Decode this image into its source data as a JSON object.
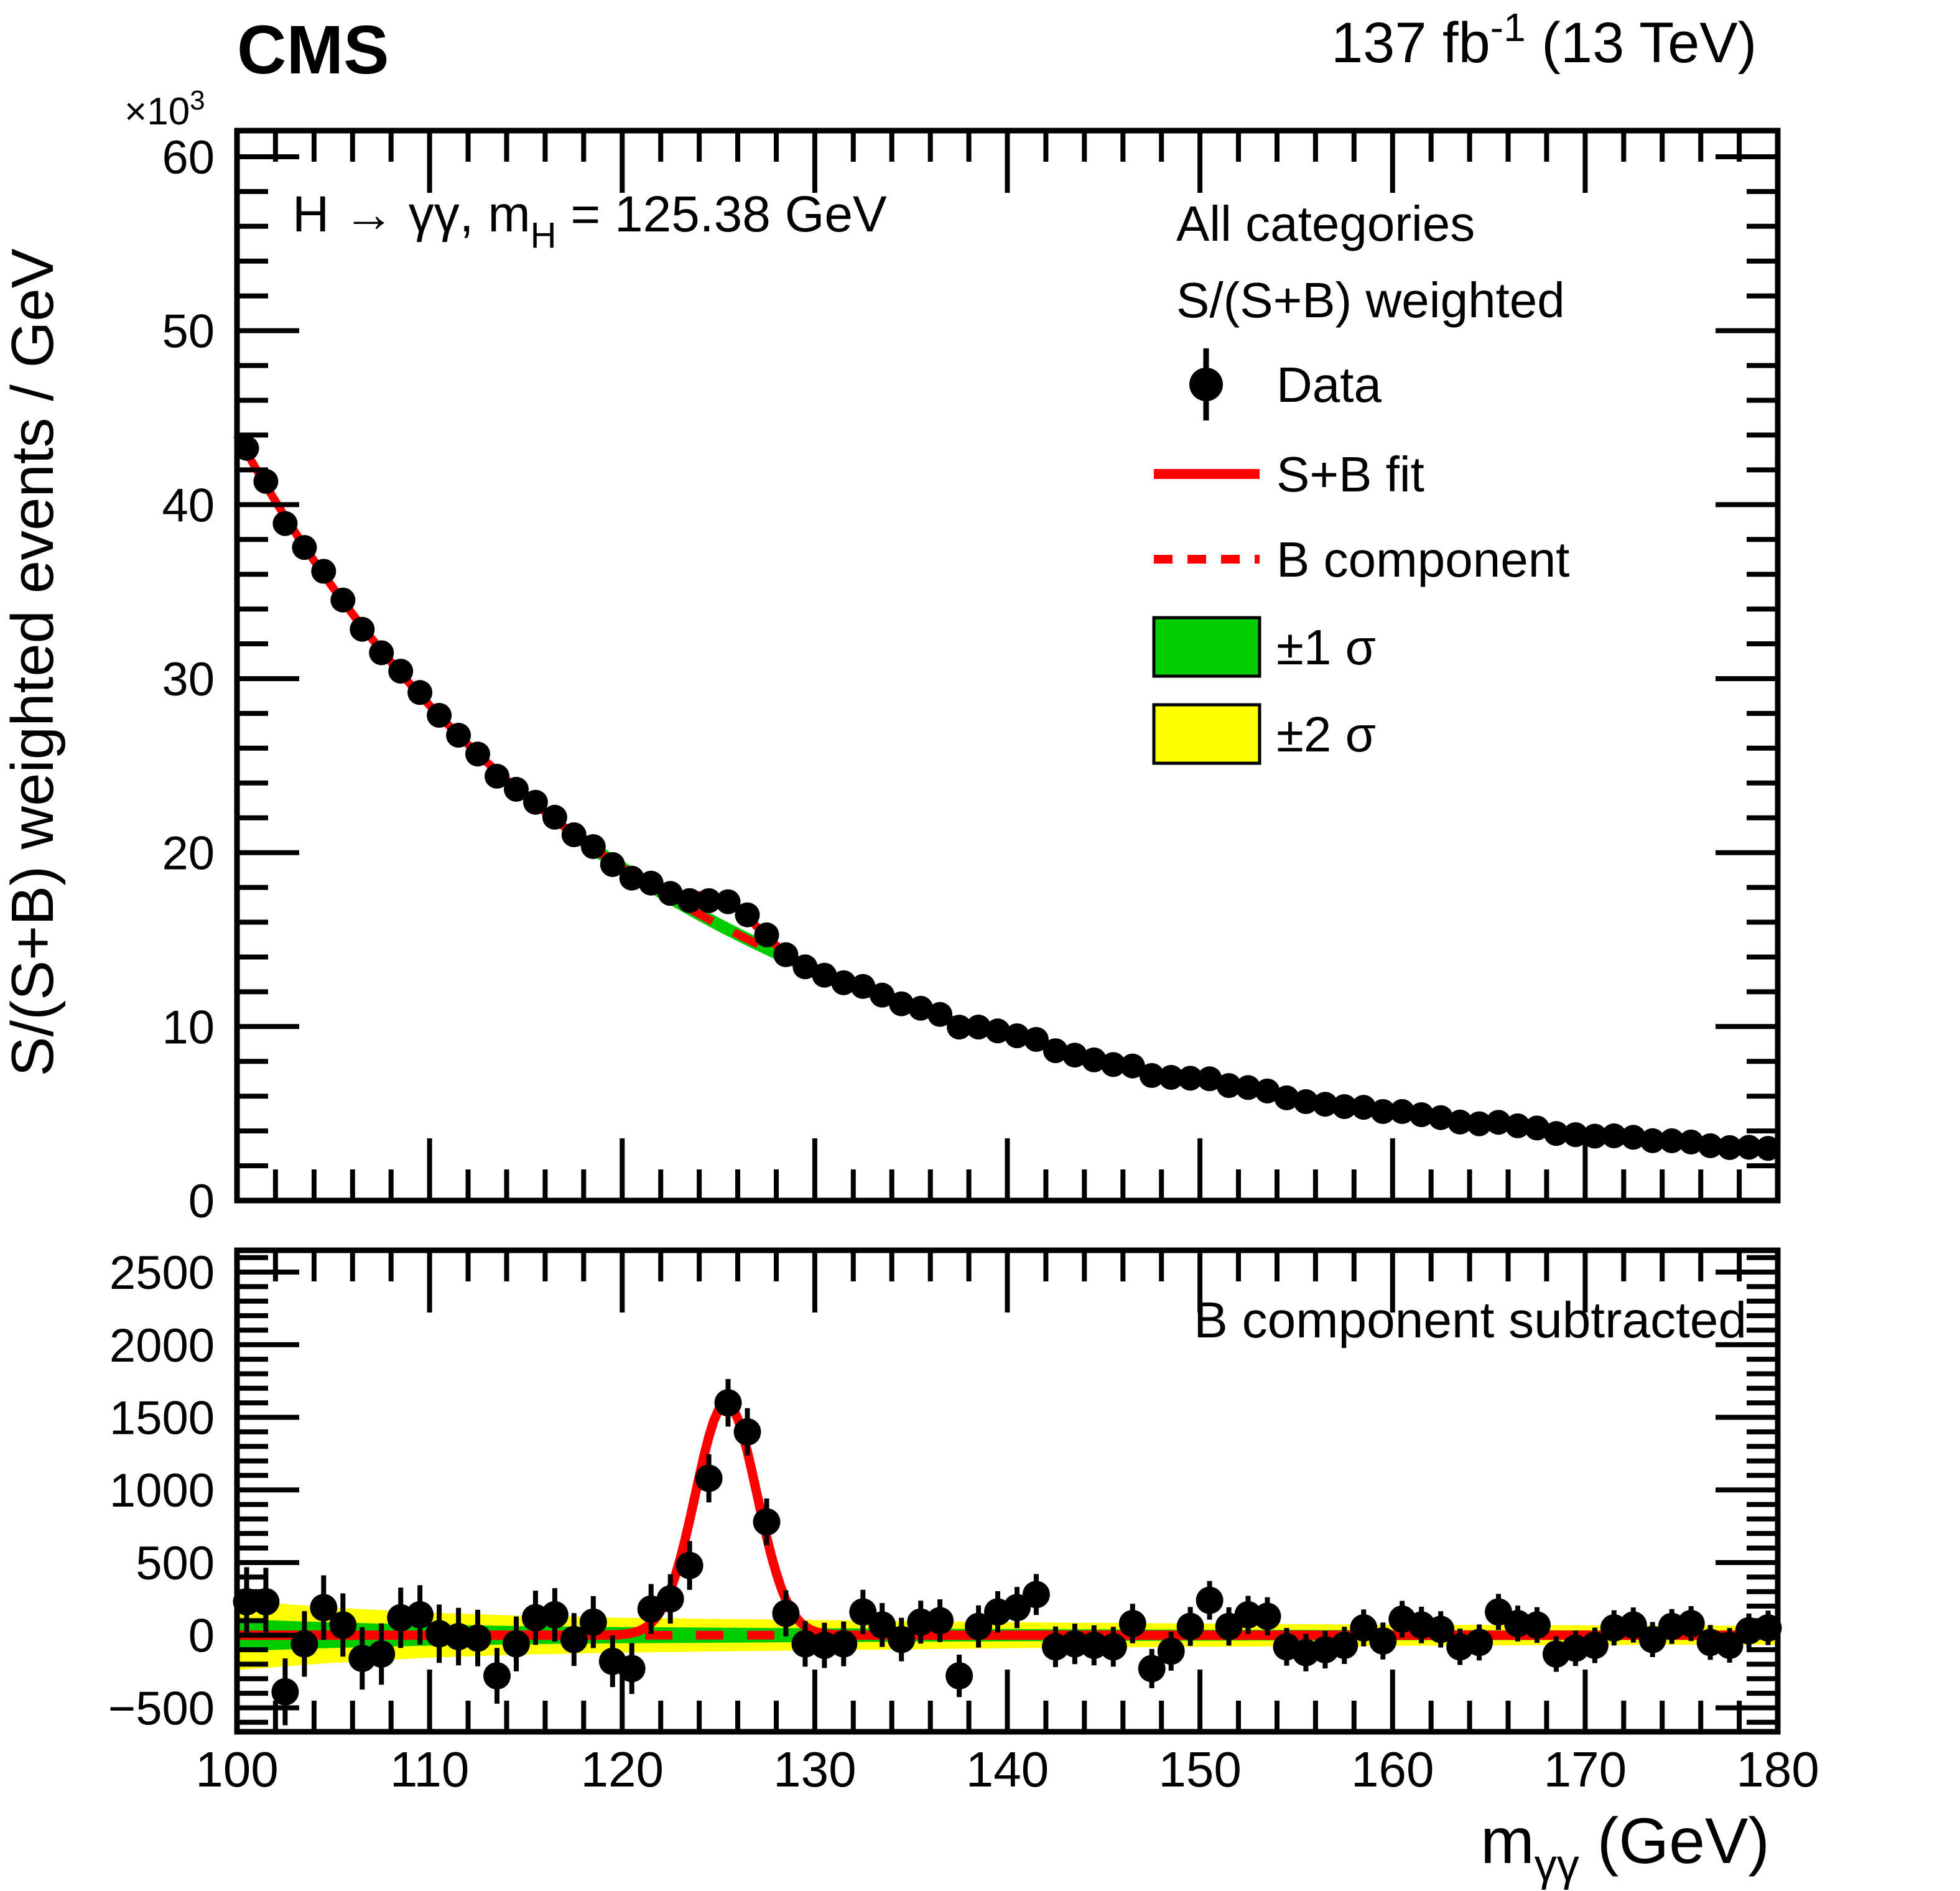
{
  "figure": {
    "header": {
      "experiment": "CMS",
      "lumi_main": "137 fb",
      "lumi_sup": "-1",
      "lumi_rest": " (13 TeV)"
    },
    "scale_label": {
      "main": "×10",
      "sup": "3"
    },
    "process_annotation": {
      "pre": "H → γγ, m",
      "sub": "H",
      "post": " = 125.38 GeV"
    },
    "y_axis_title": "S/(S+B) weighted events / GeV",
    "x_axis_title": {
      "pre": "m",
      "sub": "γγ",
      "post": " (GeV)"
    },
    "bottom_annotation": "B component subtracted",
    "legend": {
      "position": "top-right-inside",
      "items": [
        {
          "label": "All categories",
          "marker": "none"
        },
        {
          "label": "S/(S+B) weighted",
          "marker": "none"
        },
        {
          "label": "Data",
          "marker": "data-point",
          "color": "#000000"
        },
        {
          "label": "S+B fit",
          "marker": "solid-line",
          "color": "#ff0000"
        },
        {
          "label": "B component",
          "marker": "dashed-line",
          "color": "#ff0000"
        },
        {
          "label": "±1 σ",
          "marker": "box",
          "color": "#00cc00"
        },
        {
          "label": "±2 σ",
          "marker": "box",
          "color": "#ffff00"
        }
      ]
    },
    "colors": {
      "fit_line": "#ff0000",
      "band_1sigma": "#00cc00",
      "band_2sigma": "#ffff00",
      "data_marker": "#000000"
    }
  },
  "chart_data": [
    {
      "type": "scatter",
      "name": "weighted-mass-spectrum",
      "title": "S/(S+B) weighted events vs diphoton mass",
      "ylabel": "S/(S+B) weighted events / GeV",
      "grid": false,
      "x_range": [
        100,
        180
      ],
      "y_range": [
        0,
        60000
      ],
      "y_scale_exponent": 3,
      "x_axis": {
        "tick_values": [
          100,
          110,
          120,
          130,
          140,
          150,
          160,
          170,
          180
        ],
        "tick_labels": [
          "100",
          "110",
          "120",
          "130",
          "140",
          "150",
          "160",
          "170",
          "180"
        ],
        "minor_step": 2
      },
      "y_axis": {
        "tick_values": [
          0,
          10000,
          20000,
          30000,
          40000,
          50000,
          60000
        ],
        "tick_labels": [
          "0",
          "10",
          "20",
          "30",
          "40",
          "50",
          "60"
        ],
        "minor_step": 2000
      },
      "x_bins": {
        "start": 100.5,
        "step": 1,
        "count": 80
      },
      "data": {
        "y": [
          43239,
          41336,
          38915,
          37539,
          36172,
          34520,
          32837,
          31487,
          30427,
          29203,
          27890,
          26746,
          25666,
          24388,
          23638,
          22894,
          22034,
          21025,
          20345,
          19311,
          18533,
          18246,
          17652,
          17246,
          17239,
          17178,
          16422,
          15270,
          14131,
          13433,
          12955,
          12517,
          12308,
          11806,
          11311,
          11052,
          10698,
          9968,
          9973,
          9750,
          9470,
          9262,
          8615,
          8359,
          8084,
          7818,
          7733,
          7186,
          7078,
          7028,
          6996,
          6612,
          6495,
          6295,
          5902,
          5685,
          5534,
          5400,
          5360,
          5117,
          5118,
          4935,
          4766,
          4512,
          4413,
          4497,
          4296,
          4169,
          3855,
          3786,
          3699,
          3717,
          3637,
          3440,
          3437,
          3366,
          3149,
          3044,
          3061,
          3001
        ],
        "err": [
          238,
          234,
          230,
          226,
          222,
          218,
          215,
          211,
          208,
          204,
          201,
          198,
          195,
          192,
          189,
          187,
          184,
          182,
          179,
          177,
          175,
          172,
          170,
          168,
          166,
          164,
          163,
          161,
          159,
          157,
          156,
          154,
          153,
          151,
          150,
          148,
          147,
          146,
          145,
          143,
          142,
          141,
          140,
          139,
          138,
          137,
          136,
          135,
          134,
          134,
          133,
          132,
          131,
          131,
          130,
          129,
          129,
          128,
          127,
          127,
          126,
          126,
          125,
          125,
          124,
          124,
          123,
          123,
          122,
          122,
          122,
          121,
          121,
          121,
          120,
          120,
          120,
          119,
          119,
          119
        ]
      },
      "fit": {
        "background": {
          "model": "power-law",
          "norm": 44000,
          "index": 4.57,
          "ref": 100
        },
        "signal": {
          "model": "gaussian",
          "amplitude": 1600,
          "mean": 125.4,
          "sigma": 1.6
        }
      }
    },
    {
      "type": "scatter",
      "name": "background-subtracted",
      "annotation": "B component subtracted",
      "grid": false,
      "x_range": [
        100,
        180
      ],
      "y_range": [
        -665,
        2650
      ],
      "x_axis": {
        "tick_values": [
          100,
          110,
          120,
          130,
          140,
          150,
          160,
          170,
          180
        ],
        "tick_labels": [
          "100",
          "110",
          "120",
          "130",
          "140",
          "150",
          "160",
          "170",
          "180"
        ],
        "minor_step": 2
      },
      "y_axis": {
        "tick_values": [
          -500,
          0,
          500,
          1000,
          1500,
          2000,
          2500
        ],
        "tick_labels": [
          "−500",
          "0",
          "500",
          "1000",
          "1500",
          "2000",
          "2500"
        ],
        "minor_step": 100
      },
      "x_bins": {
        "start": 100.5,
        "step": 1,
        "count": 80
      },
      "data": {
        "y": [
          230,
          230,
          -390,
          -60,
          190,
          70,
          -160,
          -130,
          120,
          140,
          10,
          -10,
          -20,
          -280,
          -60,
          120,
          140,
          -30,
          90,
          -180,
          -230,
          180,
          250,
          480,
          1080,
          1600,
          1400,
          780,
          150,
          -60,
          -70,
          -60,
          160,
          70,
          -30,
          90,
          100,
          -280,
          60,
          160,
          190,
          280,
          -80,
          -60,
          -70,
          -80,
          80,
          -230,
          -110,
          60,
          240,
          60,
          140,
          130,
          -80,
          -120,
          -100,
          -70,
          50,
          -40,
          110,
          70,
          40,
          -80,
          -50,
          160,
          80,
          70,
          -130,
          -90,
          -70,
          50,
          70,
          -30,
          60,
          80,
          -50,
          -70,
          30,
          50
        ],
        "err": [
          238,
          234,
          230,
          226,
          222,
          218,
          215,
          211,
          208,
          204,
          201,
          198,
          195,
          192,
          189,
          187,
          184,
          182,
          179,
          177,
          175,
          172,
          170,
          168,
          166,
          164,
          163,
          161,
          159,
          157,
          156,
          154,
          153,
          151,
          150,
          148,
          147,
          146,
          145,
          143,
          142,
          141,
          140,
          139,
          138,
          137,
          136,
          135,
          134,
          134,
          133,
          132,
          131,
          131,
          130,
          129,
          129,
          128,
          127,
          127,
          126,
          126,
          125,
          125,
          124,
          124,
          123,
          123,
          122,
          122,
          122,
          121,
          121,
          121,
          120,
          120,
          120,
          119,
          119,
          119
        ]
      },
      "signal_curve": {
        "model": "gaussian",
        "amplitude": 1600,
        "mean": 125.4,
        "sigma": 1.6
      },
      "zero_line_value": 0,
      "bands": {
        "x": [
          100,
          105,
          110,
          115,
          120,
          125,
          130,
          135,
          140,
          145,
          150,
          155,
          160,
          165,
          170,
          175,
          180
        ],
        "sigma1_half_width": [
          110,
          88,
          72,
          62,
          56,
          52,
          48,
          45,
          42,
          40,
          38,
          36,
          35,
          34,
          33,
          32,
          32
        ],
        "sigma2_half_width": [
          240,
          190,
          155,
          133,
          120,
          112,
          104,
          97,
          90,
          85,
          80,
          76,
          73,
          70,
          68,
          66,
          65
        ]
      }
    }
  ]
}
